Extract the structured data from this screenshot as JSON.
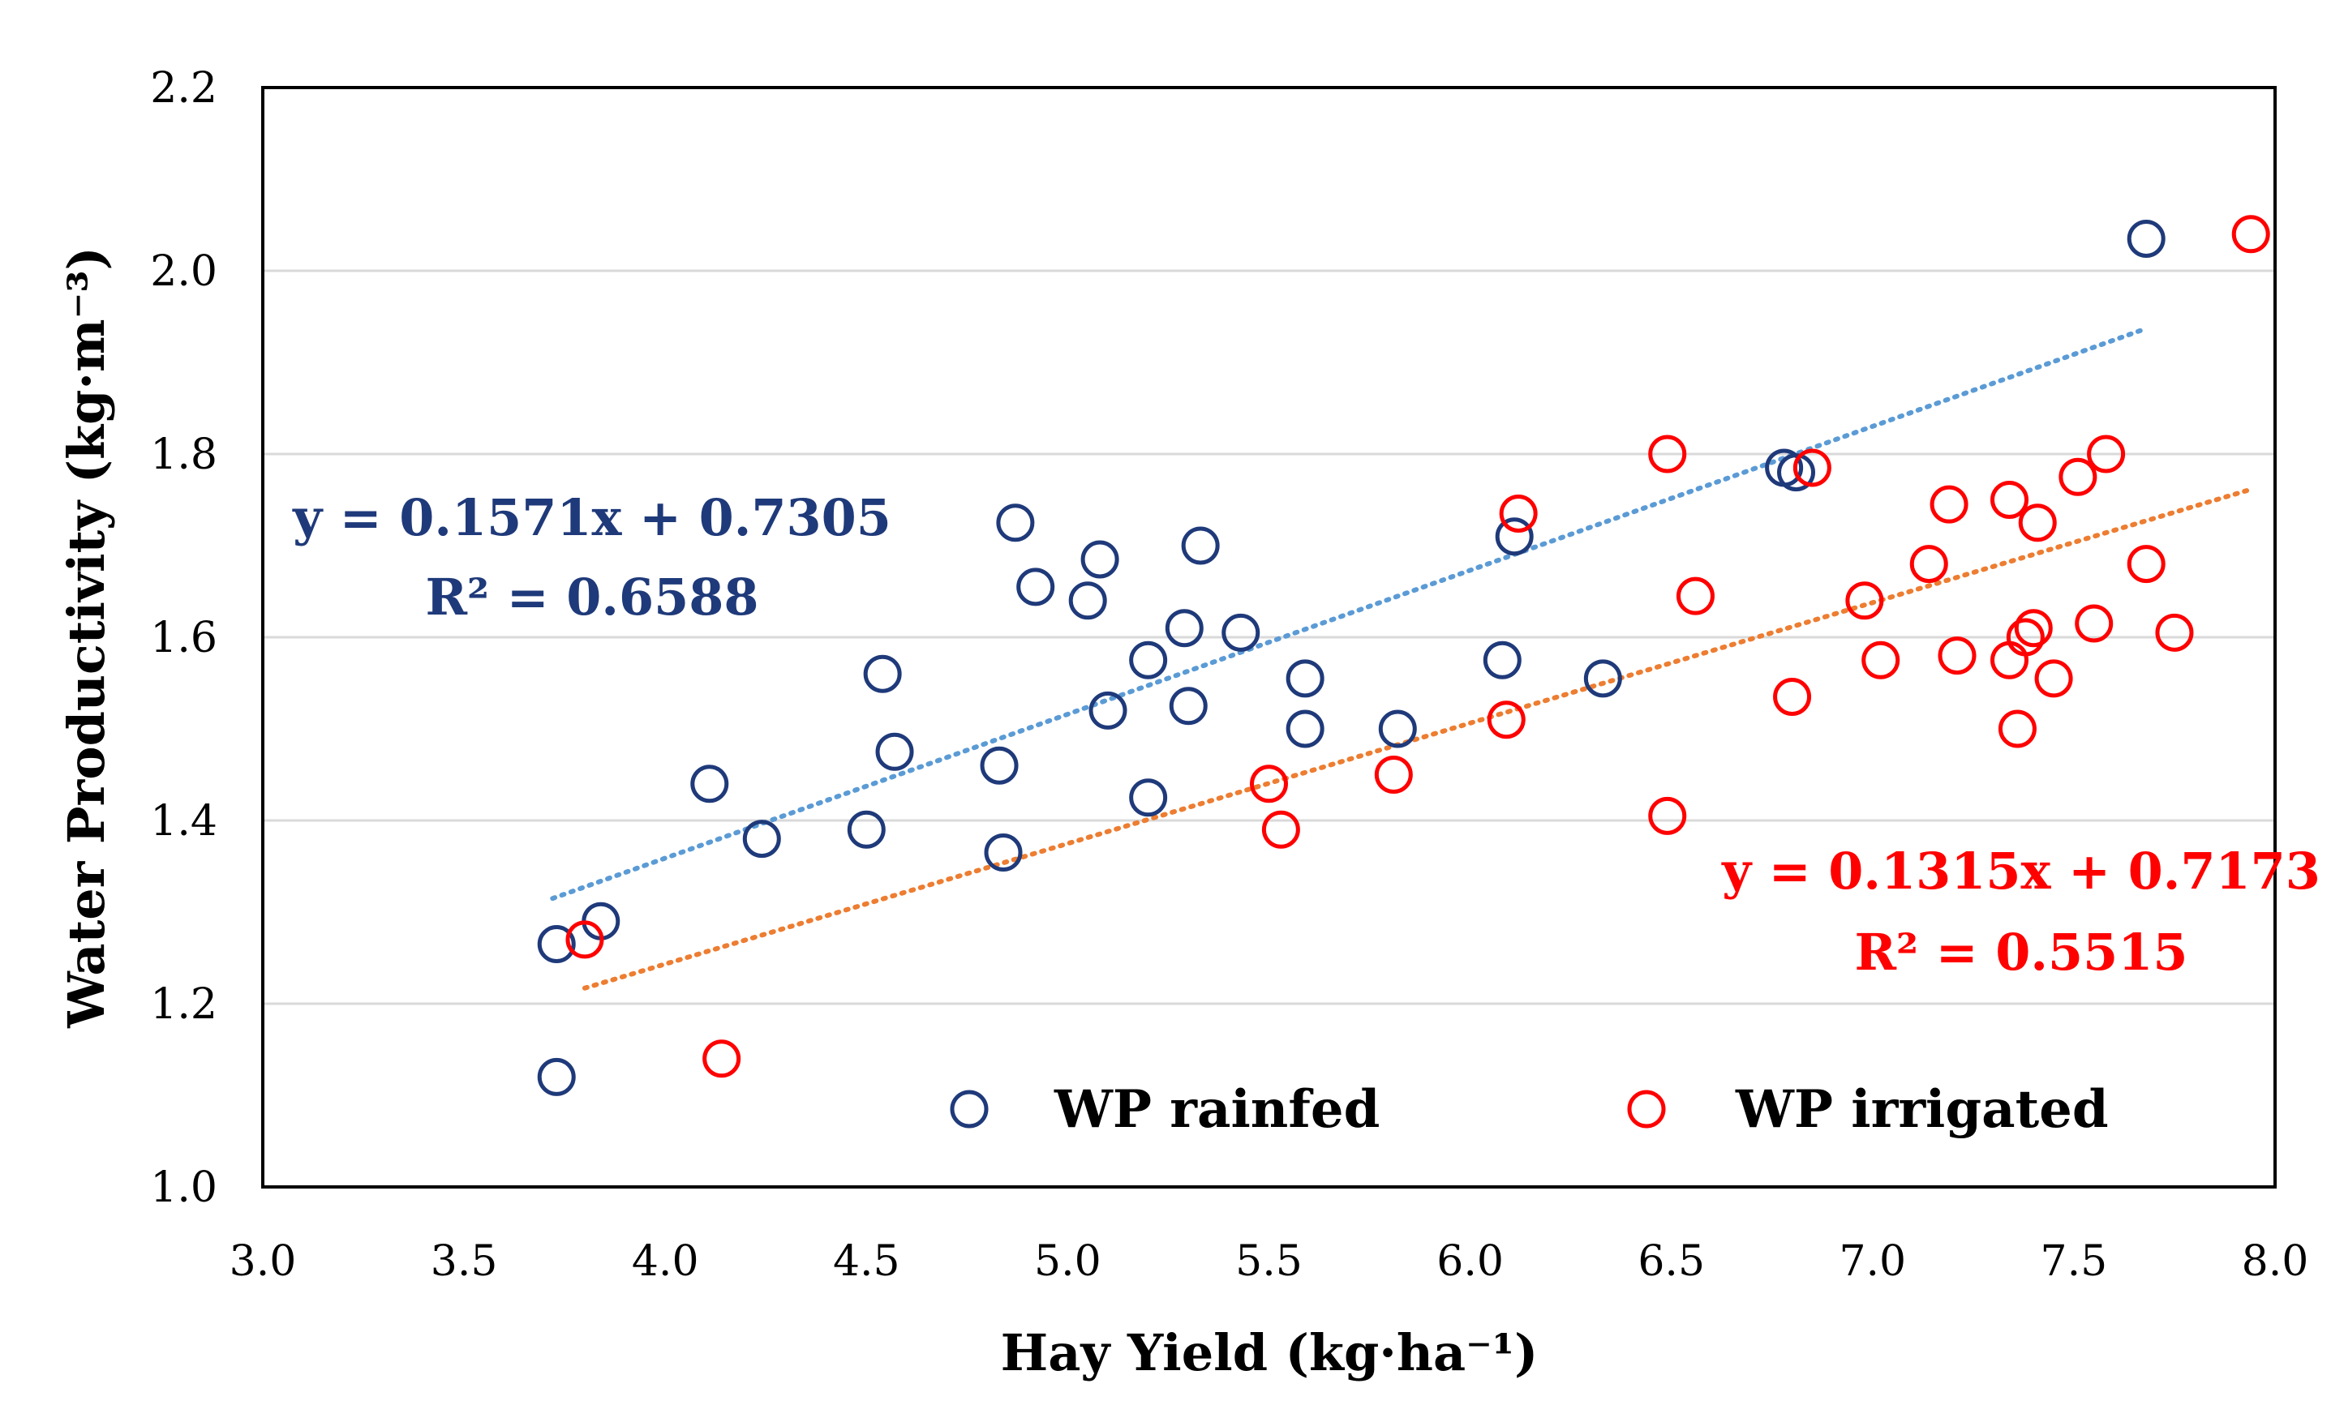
{
  "chart_data": {
    "type": "scatter",
    "xlabel": "Hay Yield (kg·ha⁻¹)",
    "ylabel": "Water Productivity (kg·m⁻³)",
    "xlim": [
      3.0,
      8.0
    ],
    "ylim": [
      1.0,
      2.2
    ],
    "x_ticks": [
      "3.0",
      "3.5",
      "4.0",
      "4.5",
      "5.0",
      "5.5",
      "6.0",
      "6.5",
      "7.0",
      "7.5",
      "8.0"
    ],
    "y_ticks": [
      "1.0",
      "1.2",
      "1.4",
      "1.6",
      "1.8",
      "2.0",
      "2.2"
    ],
    "grid": "horizontal",
    "series": [
      {
        "name": "WP rainfed",
        "color": "#1F3A7A",
        "trend_color": "#5B9BD5",
        "equation": "y = 0.1571x + 0.7305",
        "r2": "R² = 0.6588",
        "trend_x_range": [
          3.72,
          7.68
        ],
        "points": [
          [
            3.73,
            1.12
          ],
          [
            3.73,
            1.265
          ],
          [
            3.84,
            1.29
          ],
          [
            4.11,
            1.44
          ],
          [
            4.24,
            1.38
          ],
          [
            4.5,
            1.39
          ],
          [
            4.54,
            1.56
          ],
          [
            4.57,
            1.475
          ],
          [
            4.83,
            1.46
          ],
          [
            4.84,
            1.365
          ],
          [
            4.87,
            1.725
          ],
          [
            4.92,
            1.655
          ],
          [
            5.05,
            1.64
          ],
          [
            5.08,
            1.685
          ],
          [
            5.1,
            1.52
          ],
          [
            5.2,
            1.575
          ],
          [
            5.2,
            1.425
          ],
          [
            5.29,
            1.61
          ],
          [
            5.3,
            1.525
          ],
          [
            5.33,
            1.7
          ],
          [
            5.43,
            1.605
          ],
          [
            5.59,
            1.555
          ],
          [
            5.59,
            1.5
          ],
          [
            5.82,
            1.5
          ],
          [
            6.08,
            1.575
          ],
          [
            6.11,
            1.71
          ],
          [
            6.33,
            1.555
          ],
          [
            6.78,
            1.785
          ],
          [
            6.81,
            1.78
          ],
          [
            7.68,
            2.035
          ]
        ]
      },
      {
        "name": "WP irrigated",
        "color": "#FF0000",
        "trend_color": "#ED7D31",
        "equation": "y = 0.1315x + 0.7173",
        "r2": "R² = 0.5515",
        "trend_x_range": [
          3.8,
          7.94
        ],
        "points": [
          [
            3.8,
            1.27
          ],
          [
            4.14,
            1.14
          ],
          [
            5.5,
            1.44
          ],
          [
            5.53,
            1.39
          ],
          [
            5.81,
            1.45
          ],
          [
            6.09,
            1.51
          ],
          [
            6.12,
            1.735
          ],
          [
            6.49,
            1.8
          ],
          [
            6.49,
            1.405
          ],
          [
            6.56,
            1.645
          ],
          [
            6.8,
            1.535
          ],
          [
            6.85,
            1.785
          ],
          [
            6.98,
            1.64
          ],
          [
            7.02,
            1.575
          ],
          [
            7.14,
            1.68
          ],
          [
            7.19,
            1.745
          ],
          [
            7.21,
            1.58
          ],
          [
            7.34,
            1.75
          ],
          [
            7.34,
            1.575
          ],
          [
            7.36,
            1.5
          ],
          [
            7.38,
            1.6
          ],
          [
            7.4,
            1.61
          ],
          [
            7.41,
            1.725
          ],
          [
            7.45,
            1.555
          ],
          [
            7.51,
            1.775
          ],
          [
            7.55,
            1.615
          ],
          [
            7.58,
            1.8
          ],
          [
            7.68,
            1.68
          ],
          [
            7.75,
            1.605
          ],
          [
            7.94,
            2.04
          ]
        ]
      }
    ]
  }
}
